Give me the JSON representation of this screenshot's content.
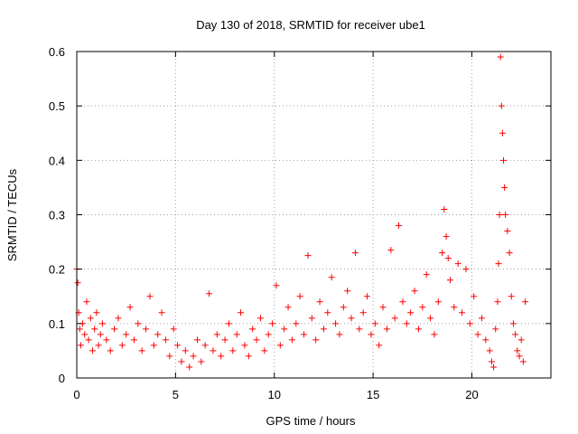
{
  "chart_data": {
    "type": "scatter",
    "title": "Day 130 of 2018, SRMTID for receiver ube1",
    "xlabel": "GPS time / hours",
    "ylabel": "SRMTID / TECUs",
    "xlim": [
      0,
      24
    ],
    "ylim": [
      0,
      0.6
    ],
    "xticks": [
      0,
      5,
      10,
      15,
      20
    ],
    "yticks": [
      0,
      0.1,
      0.2,
      0.3,
      0.4,
      0.5,
      0.6
    ],
    "xtick_labels": [
      "0",
      "5",
      "10",
      "15",
      "20"
    ],
    "ytick_labels": [
      "0",
      "0.1",
      "0.2",
      "0.3",
      "0.4",
      "0.5",
      "0.6"
    ],
    "grid": true,
    "marker": "+",
    "color": "#ff0000",
    "series": [
      {
        "name": "ube1",
        "x": [
          0.0,
          0.05,
          0.1,
          0.15,
          0.2,
          0.3,
          0.4,
          0.5,
          0.6,
          0.7,
          0.8,
          0.9,
          1.0,
          1.1,
          1.2,
          1.3,
          1.5,
          1.7,
          1.9,
          2.1,
          2.3,
          2.5,
          2.7,
          2.9,
          3.1,
          3.3,
          3.5,
          3.7,
          3.9,
          4.1,
          4.3,
          4.5,
          4.7,
          4.9,
          5.1,
          5.3,
          5.5,
          5.7,
          5.9,
          6.1,
          6.3,
          6.5,
          6.7,
          6.9,
          7.1,
          7.3,
          7.5,
          7.7,
          7.9,
          8.1,
          8.3,
          8.5,
          8.7,
          8.9,
          9.1,
          9.3,
          9.5,
          9.7,
          9.9,
          10.1,
          10.3,
          10.5,
          10.7,
          10.9,
          11.1,
          11.3,
          11.5,
          11.7,
          11.9,
          12.1,
          12.3,
          12.5,
          12.7,
          12.9,
          13.1,
          13.3,
          13.5,
          13.7,
          13.9,
          14.1,
          14.3,
          14.5,
          14.7,
          14.9,
          15.1,
          15.3,
          15.5,
          15.7,
          15.9,
          16.1,
          16.3,
          16.5,
          16.7,
          16.9,
          17.1,
          17.3,
          17.5,
          17.7,
          17.9,
          18.1,
          18.3,
          18.5,
          18.6,
          18.7,
          18.8,
          18.9,
          19.1,
          19.3,
          19.5,
          19.7,
          19.9,
          20.1,
          20.3,
          20.5,
          20.7,
          20.9,
          21.0,
          21.1,
          21.2,
          21.3,
          21.35,
          21.4,
          21.45,
          21.5,
          21.55,
          21.6,
          21.65,
          21.7,
          21.8,
          21.9,
          22.0,
          22.1,
          22.2,
          22.3,
          22.4,
          22.5,
          22.6,
          22.7
        ],
        "y": [
          0.2,
          0.175,
          0.12,
          0.09,
          0.06,
          0.1,
          0.08,
          0.14,
          0.07,
          0.11,
          0.05,
          0.09,
          0.12,
          0.06,
          0.08,
          0.1,
          0.07,
          0.05,
          0.09,
          0.11,
          0.06,
          0.08,
          0.13,
          0.07,
          0.1,
          0.05,
          0.09,
          0.15,
          0.06,
          0.08,
          0.12,
          0.07,
          0.04,
          0.09,
          0.06,
          0.03,
          0.05,
          0.02,
          0.04,
          0.07,
          0.03,
          0.06,
          0.155,
          0.05,
          0.08,
          0.04,
          0.07,
          0.1,
          0.05,
          0.08,
          0.12,
          0.06,
          0.04,
          0.09,
          0.07,
          0.11,
          0.05,
          0.08,
          0.1,
          0.17,
          0.06,
          0.09,
          0.13,
          0.07,
          0.1,
          0.15,
          0.08,
          0.225,
          0.11,
          0.07,
          0.14,
          0.09,
          0.12,
          0.185,
          0.1,
          0.08,
          0.13,
          0.16,
          0.11,
          0.23,
          0.09,
          0.12,
          0.15,
          0.08,
          0.1,
          0.06,
          0.13,
          0.09,
          0.235,
          0.11,
          0.28,
          0.14,
          0.1,
          0.12,
          0.16,
          0.09,
          0.13,
          0.19,
          0.11,
          0.08,
          0.14,
          0.23,
          0.31,
          0.26,
          0.22,
          0.18,
          0.13,
          0.21,
          0.12,
          0.2,
          0.1,
          0.15,
          0.08,
          0.11,
          0.07,
          0.05,
          0.03,
          0.02,
          0.09,
          0.14,
          0.21,
          0.3,
          0.59,
          0.5,
          0.45,
          0.4,
          0.35,
          0.3,
          0.27,
          0.23,
          0.15,
          0.1,
          0.08,
          0.05,
          0.04,
          0.07,
          0.03,
          0.14
        ]
      }
    ]
  }
}
